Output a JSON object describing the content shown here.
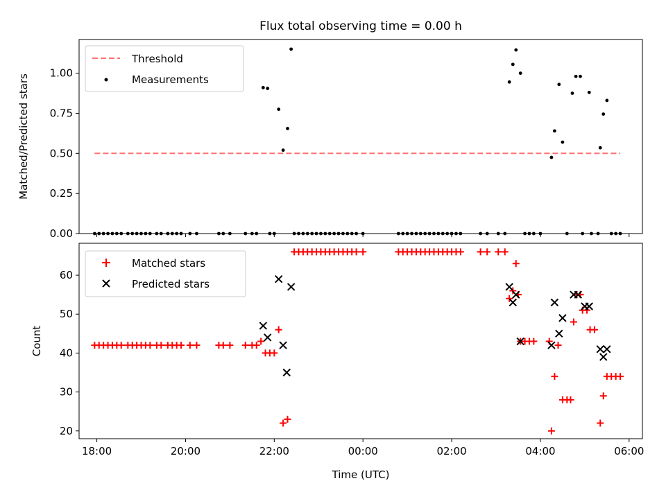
{
  "chart_data": [
    {
      "type": "scatter",
      "title": "Flux total observing time = 0.00 h",
      "xlabel": "",
      "ylabel": "Matched/Predicted stars",
      "xlim": [
        17.6,
        30.3
      ],
      "ylim": [
        0.0,
        1.21
      ],
      "yticks": [
        0.0,
        0.25,
        0.5,
        0.75,
        1.0
      ],
      "ytick_labels": [
        "0.00",
        "0.25",
        "0.50",
        "0.75",
        "1.00"
      ],
      "xticks": [
        18,
        20,
        22,
        24,
        26,
        28,
        30
      ],
      "legend": {
        "location": "top-left",
        "entries": [
          "Threshold",
          "Measurements"
        ]
      },
      "threshold": {
        "name": "Threshold",
        "value": 0.5,
        "x_range": [
          17.95,
          29.8
        ],
        "color": "#ff7070"
      },
      "series": [
        {
          "name": "Measurements",
          "marker": "dot",
          "color": "#000000",
          "points": [
            [
              17.95,
              0
            ],
            [
              18.05,
              0
            ],
            [
              18.15,
              0
            ],
            [
              18.25,
              0
            ],
            [
              18.35,
              0
            ],
            [
              18.45,
              0
            ],
            [
              18.55,
              0
            ],
            [
              18.7,
              0
            ],
            [
              18.8,
              0
            ],
            [
              18.9,
              0
            ],
            [
              19.0,
              0
            ],
            [
              19.1,
              0
            ],
            [
              19.2,
              0
            ],
            [
              19.35,
              0
            ],
            [
              19.45,
              0
            ],
            [
              19.6,
              0
            ],
            [
              19.7,
              0
            ],
            [
              19.8,
              0
            ],
            [
              19.9,
              0
            ],
            [
              20.1,
              0
            ],
            [
              20.25,
              0
            ],
            [
              20.75,
              0
            ],
            [
              20.85,
              0
            ],
            [
              21.0,
              0
            ],
            [
              21.35,
              0
            ],
            [
              21.5,
              0
            ],
            [
              21.6,
              0
            ],
            [
              21.75,
              0.91
            ],
            [
              21.85,
              0.905
            ],
            [
              21.9,
              0
            ],
            [
              22.0,
              0
            ],
            [
              22.1,
              0.775
            ],
            [
              22.2,
              0.52
            ],
            [
              22.3,
              0.655
            ],
            [
              22.38,
              1.15
            ],
            [
              22.45,
              0
            ],
            [
              22.55,
              0
            ],
            [
              22.65,
              0
            ],
            [
              22.75,
              0
            ],
            [
              22.85,
              0
            ],
            [
              22.95,
              0
            ],
            [
              23.05,
              0
            ],
            [
              23.15,
              0
            ],
            [
              23.25,
              0
            ],
            [
              23.35,
              0
            ],
            [
              23.45,
              0
            ],
            [
              23.55,
              0
            ],
            [
              23.65,
              0
            ],
            [
              23.75,
              0
            ],
            [
              23.85,
              0
            ],
            [
              24.0,
              0
            ],
            [
              24.8,
              0
            ],
            [
              24.9,
              0
            ],
            [
              25.0,
              0
            ],
            [
              25.1,
              0
            ],
            [
              25.2,
              0
            ],
            [
              25.3,
              0
            ],
            [
              25.4,
              0
            ],
            [
              25.5,
              0
            ],
            [
              25.6,
              0
            ],
            [
              25.7,
              0
            ],
            [
              25.8,
              0
            ],
            [
              25.9,
              0
            ],
            [
              26.0,
              0
            ],
            [
              26.1,
              0
            ],
            [
              26.2,
              0
            ],
            [
              26.65,
              0
            ],
            [
              26.8,
              0
            ],
            [
              27.05,
              0
            ],
            [
              27.2,
              0
            ],
            [
              27.3,
              0.945
            ],
            [
              27.38,
              1.055
            ],
            [
              27.45,
              1.145
            ],
            [
              27.55,
              1.0
            ],
            [
              27.65,
              0
            ],
            [
              27.75,
              0
            ],
            [
              27.85,
              0
            ],
            [
              28.0,
              0
            ],
            [
              28.25,
              0.475
            ],
            [
              28.32,
              0.64
            ],
            [
              28.42,
              0.93
            ],
            [
              28.5,
              0.57
            ],
            [
              28.6,
              0
            ],
            [
              28.72,
              0.875
            ],
            [
              28.8,
              0.98
            ],
            [
              28.9,
              0.98
            ],
            [
              28.95,
              0
            ],
            [
              29.1,
              0.88
            ],
            [
              29.15,
              0
            ],
            [
              29.3,
              0
            ],
            [
              29.35,
              0.535
            ],
            [
              29.42,
              0.745
            ],
            [
              29.5,
              0.83
            ],
            [
              29.6,
              0
            ],
            [
              29.7,
              0
            ],
            [
              29.8,
              0
            ]
          ]
        }
      ]
    },
    {
      "type": "scatter",
      "title": "",
      "xlabel": "Time (UTC)",
      "ylabel": "Count",
      "xlim": [
        17.6,
        30.3
      ],
      "ylim": [
        18.0,
        68.2
      ],
      "yticks": [
        20,
        30,
        40,
        50,
        60
      ],
      "ytick_labels": [
        "20",
        "30",
        "40",
        "50",
        "60"
      ],
      "xticks": [
        18,
        20,
        22,
        24,
        26,
        28,
        30
      ],
      "xtick_labels": [
        "18:00",
        "20:00",
        "22:00",
        "00:00",
        "02:00",
        "04:00",
        "06:00"
      ],
      "legend": {
        "location": "top-left",
        "entries": [
          "Matched stars",
          "Predicted stars"
        ]
      },
      "series": [
        {
          "name": "Matched stars",
          "marker": "plus",
          "color": "#ff0000",
          "points": [
            [
              17.95,
              42
            ],
            [
              18.05,
              42
            ],
            [
              18.15,
              42
            ],
            [
              18.25,
              42
            ],
            [
              18.35,
              42
            ],
            [
              18.45,
              42
            ],
            [
              18.55,
              42
            ],
            [
              18.7,
              42
            ],
            [
              18.8,
              42
            ],
            [
              18.9,
              42
            ],
            [
              19.0,
              42
            ],
            [
              19.1,
              42
            ],
            [
              19.2,
              42
            ],
            [
              19.35,
              42
            ],
            [
              19.45,
              42
            ],
            [
              19.6,
              42
            ],
            [
              19.7,
              42
            ],
            [
              19.8,
              42
            ],
            [
              19.9,
              42
            ],
            [
              20.1,
              42
            ],
            [
              20.25,
              42
            ],
            [
              20.75,
              42
            ],
            [
              20.85,
              42
            ],
            [
              21.0,
              42
            ],
            [
              21.35,
              42
            ],
            [
              21.5,
              42
            ],
            [
              21.6,
              42
            ],
            [
              21.7,
              43
            ],
            [
              21.8,
              40
            ],
            [
              21.9,
              40
            ],
            [
              22.0,
              40
            ],
            [
              22.1,
              46
            ],
            [
              22.2,
              22
            ],
            [
              22.3,
              23
            ],
            [
              22.45,
              66
            ],
            [
              22.55,
              66
            ],
            [
              22.65,
              66
            ],
            [
              22.75,
              66
            ],
            [
              22.85,
              66
            ],
            [
              22.95,
              66
            ],
            [
              23.05,
              66
            ],
            [
              23.15,
              66
            ],
            [
              23.25,
              66
            ],
            [
              23.35,
              66
            ],
            [
              23.45,
              66
            ],
            [
              23.55,
              66
            ],
            [
              23.65,
              66
            ],
            [
              23.75,
              66
            ],
            [
              23.85,
              66
            ],
            [
              24.0,
              66
            ],
            [
              24.8,
              66
            ],
            [
              24.9,
              66
            ],
            [
              25.0,
              66
            ],
            [
              25.1,
              66
            ],
            [
              25.2,
              66
            ],
            [
              25.3,
              66
            ],
            [
              25.4,
              66
            ],
            [
              25.5,
              66
            ],
            [
              25.6,
              66
            ],
            [
              25.7,
              66
            ],
            [
              25.8,
              66
            ],
            [
              25.9,
              66
            ],
            [
              26.0,
              66
            ],
            [
              26.1,
              66
            ],
            [
              26.2,
              66
            ],
            [
              26.65,
              66
            ],
            [
              26.8,
              66
            ],
            [
              27.05,
              66
            ],
            [
              27.2,
              66
            ],
            [
              27.3,
              54
            ],
            [
              27.38,
              56
            ],
            [
              27.45,
              63
            ],
            [
              27.5,
              55
            ],
            [
              27.55,
              43
            ],
            [
              27.65,
              43
            ],
            [
              27.75,
              43
            ],
            [
              27.85,
              43
            ],
            [
              28.2,
              43
            ],
            [
              28.25,
              20
            ],
            [
              28.32,
              34
            ],
            [
              28.4,
              42
            ],
            [
              28.5,
              28
            ],
            [
              28.6,
              28
            ],
            [
              28.68,
              28
            ],
            [
              28.75,
              48
            ],
            [
              28.82,
              55
            ],
            [
              28.9,
              55
            ],
            [
              28.95,
              51
            ],
            [
              29.05,
              51
            ],
            [
              29.12,
              46
            ],
            [
              29.22,
              46
            ],
            [
              29.35,
              22
            ],
            [
              29.42,
              29
            ],
            [
              29.5,
              34
            ],
            [
              29.6,
              34
            ],
            [
              29.7,
              34
            ],
            [
              29.8,
              34
            ]
          ]
        },
        {
          "name": "Predicted stars",
          "marker": "x",
          "color": "#000000",
          "points": [
            [
              21.75,
              47
            ],
            [
              21.85,
              44
            ],
            [
              22.1,
              59
            ],
            [
              22.2,
              42
            ],
            [
              22.28,
              35
            ],
            [
              22.38,
              57
            ],
            [
              27.3,
              57
            ],
            [
              27.38,
              53
            ],
            [
              27.45,
              55
            ],
            [
              27.55,
              43
            ],
            [
              28.25,
              42
            ],
            [
              28.32,
              53
            ],
            [
              28.42,
              45
            ],
            [
              28.5,
              49
            ],
            [
              28.75,
              55
            ],
            [
              28.85,
              55
            ],
            [
              29.0,
              52
            ],
            [
              29.1,
              52
            ],
            [
              29.35,
              41
            ],
            [
              29.42,
              39
            ],
            [
              29.5,
              41
            ]
          ]
        }
      ]
    }
  ]
}
